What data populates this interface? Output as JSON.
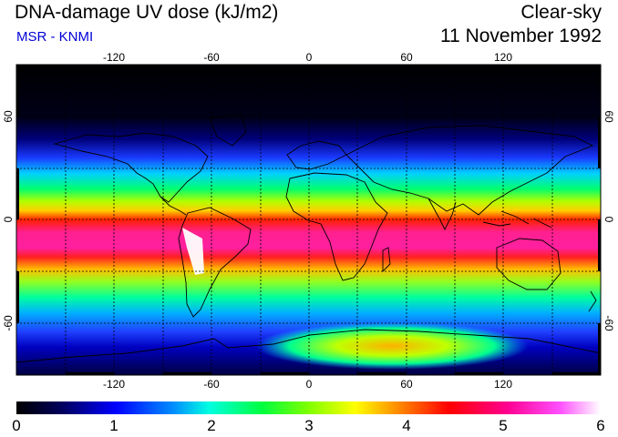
{
  "header": {
    "title": "DNA-damage UV dose (kJ/m2)",
    "subtitle": "MSR - KNMI",
    "condition": "Clear-sky",
    "date": "11 November 1992"
  },
  "map": {
    "projection": "equirectangular",
    "lon_range": [
      -180,
      180
    ],
    "lat_range": [
      -90,
      90
    ],
    "lon_ticks": [
      "-120",
      "-60",
      "0",
      "60",
      "120"
    ],
    "lat_ticks_left": [
      "60",
      "0",
      "-60"
    ],
    "lat_ticks_right": [
      "60",
      "0",
      "-60"
    ],
    "gridlines": "dotted every 30 degrees"
  },
  "colorbar": {
    "min": 0,
    "max": 6,
    "labels": [
      "0",
      "1",
      "2",
      "3",
      "4",
      "5",
      "6"
    ],
    "colors": [
      "#000000",
      "#00008b",
      "#0000ff",
      "#00e0ff",
      "#00ff60",
      "#90ff00",
      "#ffff00",
      "#ff9000",
      "#ff0000",
      "#ff0090",
      "#ff40ff",
      "#ffffff"
    ]
  }
}
